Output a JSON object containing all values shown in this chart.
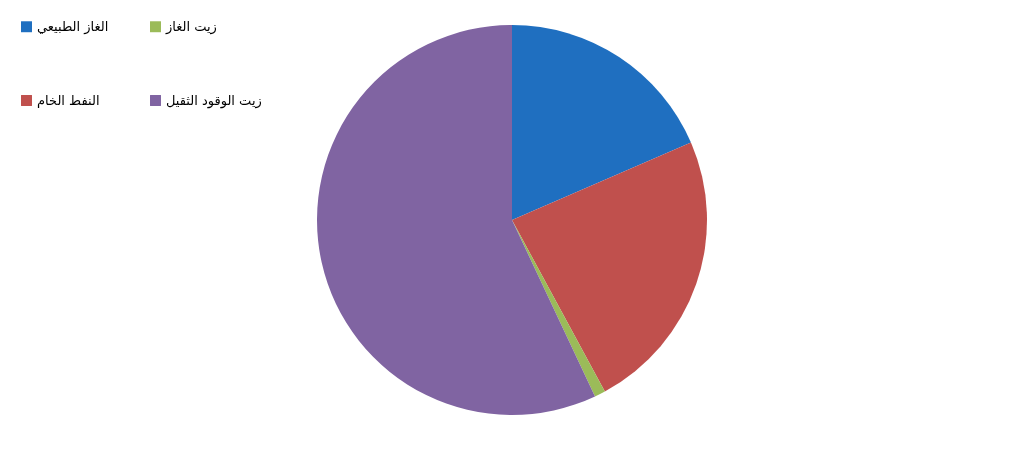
{
  "chart_data": {
    "type": "pie",
    "categories": [
      "الغاز الطبيعي",
      "النفط الخام",
      "زيت الغاز",
      "زيت الوقود الثقيل"
    ],
    "values": [
      18.5,
      23.6,
      0.9,
      57.0
    ],
    "colors": [
      "#1f6fc0",
      "#c0504d",
      "#9bbb59",
      "#8064a2"
    ],
    "legend": "left"
  }
}
